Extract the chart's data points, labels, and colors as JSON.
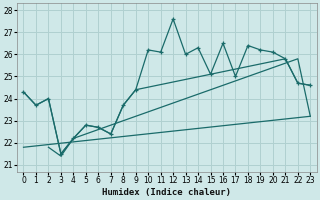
{
  "xlabel": "Humidex (Indice chaleur)",
  "bg_color": "#cfe8e8",
  "grid_color": "#b0d0d0",
  "line_color": "#1a6b6a",
  "xlim": [
    -0.5,
    23.5
  ],
  "ylim": [
    20.7,
    28.3
  ],
  "xticks": [
    0,
    1,
    2,
    3,
    4,
    5,
    6,
    7,
    8,
    9,
    10,
    11,
    12,
    13,
    14,
    15,
    16,
    17,
    18,
    19,
    20,
    21,
    22,
    23
  ],
  "yticks": [
    21,
    22,
    23,
    24,
    25,
    26,
    27,
    28
  ],
  "zigzag_x": [
    0,
    1,
    2,
    3,
    4,
    5,
    6,
    7,
    8,
    9,
    10,
    11,
    12,
    13,
    14,
    15,
    16,
    17,
    18,
    19,
    20,
    21,
    22,
    23
  ],
  "zigzag_y": [
    24.3,
    23.7,
    24.0,
    21.5,
    22.2,
    22.8,
    22.7,
    22.4,
    23.7,
    24.4,
    26.2,
    26.1,
    27.6,
    26.0,
    26.3,
    25.1,
    26.5,
    25.0,
    26.4,
    26.2,
    26.1,
    25.8,
    24.7,
    24.6
  ],
  "line1_x": [
    0,
    1,
    2,
    3,
    4,
    5,
    6,
    7,
    8,
    9,
    21,
    22,
    23
  ],
  "line1_y": [
    24.3,
    23.7,
    24.0,
    21.5,
    22.2,
    22.8,
    22.7,
    22.4,
    23.7,
    24.4,
    25.8,
    24.7,
    24.6
  ],
  "line2_x": [
    2,
    3,
    4,
    5,
    22,
    23
  ],
  "line2_y": [
    21.8,
    21.4,
    22.2,
    22.4,
    25.8,
    23.2
  ],
  "line3_x": [
    0,
    23
  ],
  "line3_y": [
    21.8,
    23.2
  ]
}
